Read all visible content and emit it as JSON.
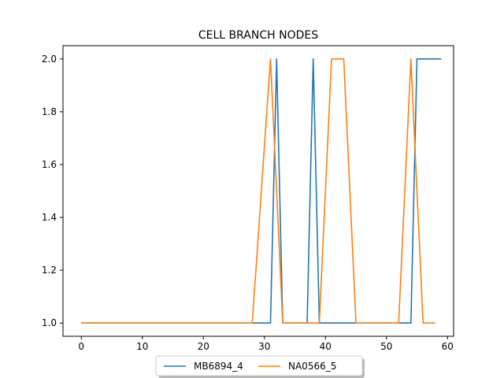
{
  "chart_data": {
    "type": "line",
    "title": "CELL BRANCH NODES",
    "xlabel": "",
    "ylabel": "",
    "xlim": [
      -3,
      61
    ],
    "ylim": [
      0.95,
      2.05
    ],
    "xticks": [
      0,
      10,
      20,
      30,
      40,
      50,
      60
    ],
    "yticks": [
      1.0,
      1.2,
      1.4,
      1.6,
      1.8,
      2.0
    ],
    "grid": false,
    "legend_position": "bottom-center",
    "series": [
      {
        "name": "MB6894_4",
        "color": "#1f77b4",
        "x": [
          0,
          1,
          2,
          3,
          4,
          5,
          6,
          7,
          8,
          9,
          10,
          11,
          12,
          13,
          14,
          15,
          16,
          17,
          18,
          19,
          20,
          21,
          22,
          23,
          24,
          25,
          26,
          27,
          28,
          29,
          30,
          31,
          32,
          33,
          34,
          35,
          36,
          37,
          38,
          39,
          40,
          41,
          42,
          43,
          44,
          45,
          46,
          47,
          48,
          49,
          50,
          51,
          52,
          53,
          54,
          55,
          56,
          57,
          58,
          59
        ],
        "y": [
          1,
          1,
          1,
          1,
          1,
          1,
          1,
          1,
          1,
          1,
          1,
          1,
          1,
          1,
          1,
          1,
          1,
          1,
          1,
          1,
          1,
          1,
          1,
          1,
          1,
          1,
          1,
          1,
          1,
          1,
          1,
          1,
          2,
          1,
          1,
          1,
          1,
          1,
          2,
          1,
          1,
          1,
          1,
          1,
          1,
          1,
          1,
          1,
          1,
          1,
          1,
          1,
          1,
          1,
          1,
          2,
          2,
          2,
          2,
          2
        ]
      },
      {
        "name": "NA0566_5",
        "color": "#ff7f0e",
        "x": [
          0,
          1,
          2,
          3,
          4,
          5,
          6,
          7,
          8,
          9,
          10,
          11,
          12,
          13,
          14,
          15,
          16,
          17,
          18,
          19,
          20,
          21,
          22,
          23,
          24,
          25,
          26,
          27,
          28,
          29,
          30,
          31,
          32,
          33,
          34,
          35,
          36,
          37,
          38,
          39,
          40,
          41,
          42,
          43,
          44,
          45,
          46,
          47,
          48,
          49,
          50,
          51,
          52,
          53,
          54,
          55,
          56,
          57,
          58
        ],
        "y": [
          1,
          1,
          1,
          1,
          1,
          1,
          1,
          1,
          1,
          1,
          1,
          1,
          1,
          1,
          1,
          1,
          1,
          1,
          1,
          1,
          1,
          1,
          1,
          1,
          1,
          1,
          1,
          1,
          1,
          1.33,
          1.67,
          2,
          1.5,
          1,
          1,
          1,
          1,
          1,
          1,
          1,
          1.5,
          2,
          2,
          2,
          1.5,
          1,
          1,
          1,
          1,
          1,
          1,
          1,
          1,
          1.5,
          2,
          1.5,
          1,
          1,
          1
        ]
      }
    ]
  }
}
